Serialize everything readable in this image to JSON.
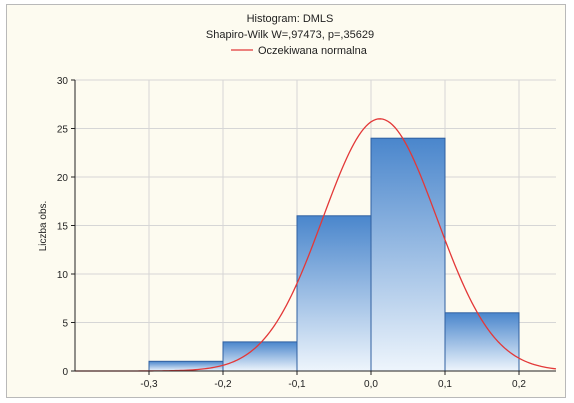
{
  "chart_data": {
    "type": "bar",
    "title": "Histogram: DMLS",
    "subtitle": "Shapiro-Wilk W=,97473, p=,35629",
    "ylabel": "Liczba obs.",
    "xlabel": "",
    "bins": [
      {
        "from": -0.3,
        "to": -0.2,
        "count": 1
      },
      {
        "from": -0.2,
        "to": -0.1,
        "count": 3
      },
      {
        "from": -0.1,
        "to": 0.0,
        "count": 16
      },
      {
        "from": 0.0,
        "to": 0.1,
        "count": 24
      },
      {
        "from": 0.1,
        "to": 0.2,
        "count": 6
      }
    ],
    "x_ticks": [
      "-0,3",
      "-0,2",
      "-0,1",
      "0,0",
      "0,1",
      "0,2"
    ],
    "x_tick_values": [
      -0.3,
      -0.2,
      -0.1,
      0.0,
      0.1,
      0.2
    ],
    "y_ticks": [
      "0",
      "5",
      "10",
      "15",
      "20",
      "25",
      "30"
    ],
    "y_tick_values": [
      0,
      5,
      10,
      15,
      20,
      25,
      30
    ],
    "xlim": [
      -0.4,
      0.25
    ],
    "ylim": [
      0,
      30
    ],
    "grid": true,
    "legend_placement": "top-center",
    "series": [
      {
        "name": "Oczekiwana normalna",
        "type": "line",
        "mean": 0.012,
        "sd": 0.077,
        "peak": 26
      }
    ],
    "colors": {
      "bar_fill_top": "#4a86cc",
      "bar_fill_bottom": "#eef5fc",
      "bar_stroke": "#2f5fa0",
      "curve": "#e33838",
      "grid": "#d6d6d6",
      "background": "#fdfbf0"
    }
  }
}
